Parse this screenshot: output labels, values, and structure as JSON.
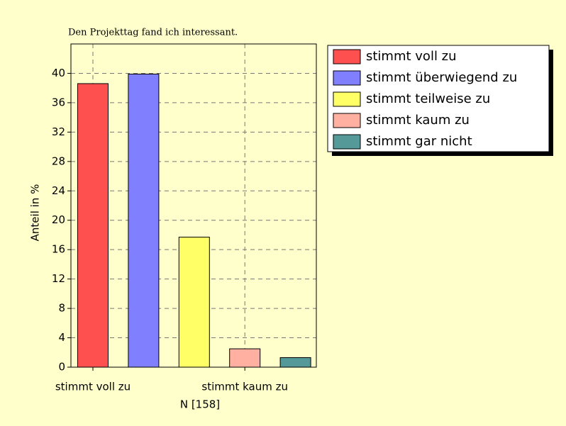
{
  "chart_data": {
    "type": "bar",
    "title": "Den Projekttag fand ich interessant.",
    "x_label": "N [158]",
    "y_label": "Anteil in %",
    "categories": [
      "stimmt voll zu",
      null,
      null,
      "stimmt kaum zu",
      null
    ],
    "values": [
      38.6,
      39.9,
      17.7,
      2.5,
      1.3
    ],
    "colors": [
      "#ff5050",
      "#8080ff",
      "#ffff66",
      "#ffb0a0",
      "#559999"
    ],
    "legend": [
      "stimmt voll zu",
      "stimmt überwiegend zu",
      "stimmt teilweise zu",
      "stimmt kaum zu",
      "stimmt gar nicht"
    ],
    "ylim": [
      0,
      44
    ],
    "yticks": [
      0,
      4,
      8,
      12,
      16,
      20,
      24,
      28,
      32,
      36,
      40
    ],
    "grid": true
  }
}
